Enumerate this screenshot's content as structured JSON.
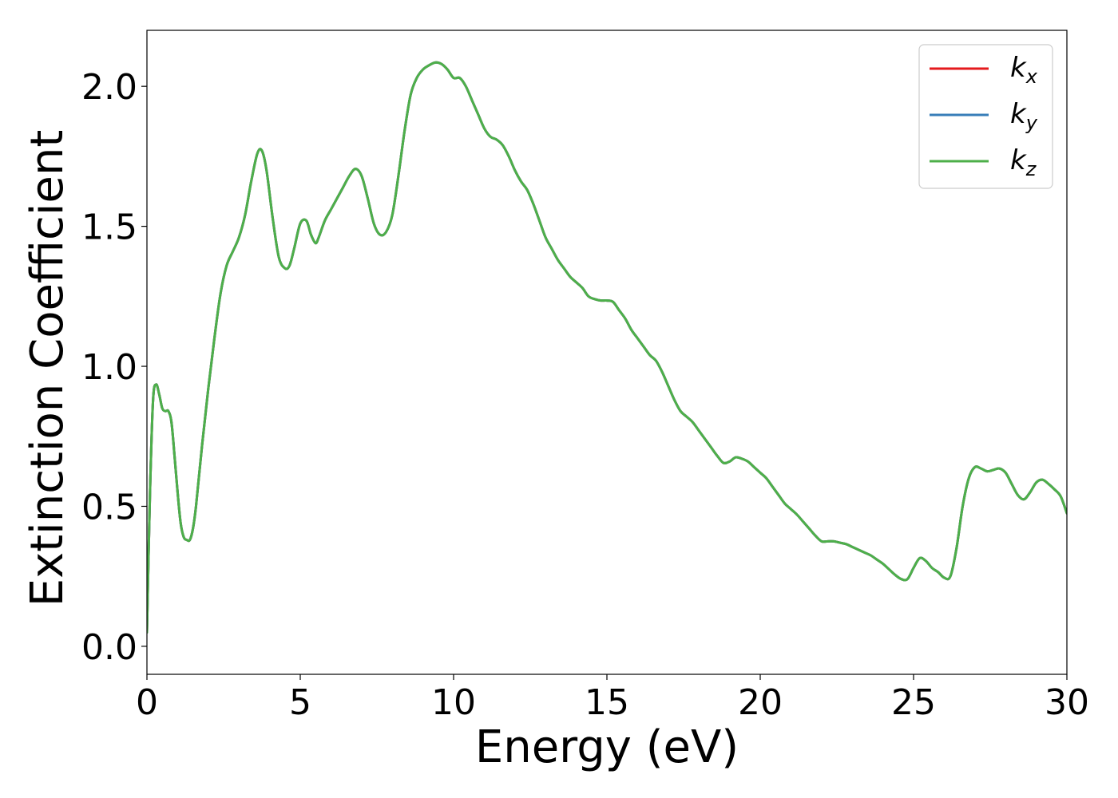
{
  "chart_data": {
    "type": "line",
    "title": "",
    "xlabel": "Energy (eV)",
    "ylabel": "Extinction Coefficient",
    "xlim": [
      0,
      30
    ],
    "ylim": [
      -0.1,
      2.2
    ],
    "xticks": [
      0,
      5,
      10,
      15,
      20,
      25,
      30
    ],
    "xtick_labels": [
      "0",
      "5",
      "10",
      "15",
      "20",
      "25",
      "30"
    ],
    "yticks": [
      0.0,
      0.5,
      1.0,
      1.5,
      2.0
    ],
    "ytick_labels": [
      "0.0",
      "0.5",
      "1.0",
      "1.5",
      "2.0"
    ],
    "grid": false,
    "legend_position": "top-right",
    "x": [
      0,
      0.1,
      0.2,
      0.3,
      0.4,
      0.5,
      0.6,
      0.7,
      0.8,
      0.9,
      1.0,
      1.1,
      1.2,
      1.3,
      1.4,
      1.5,
      1.6,
      1.8,
      2.0,
      2.2,
      2.4,
      2.6,
      2.8,
      3.0,
      3.2,
      3.4,
      3.6,
      3.75,
      3.9,
      4.1,
      4.3,
      4.5,
      4.65,
      4.8,
      5.0,
      5.2,
      5.35,
      5.5,
      5.6,
      5.8,
      6.0,
      6.2,
      6.4,
      6.6,
      6.8,
      7.0,
      7.2,
      7.4,
      7.6,
      7.8,
      8.0,
      8.2,
      8.4,
      8.6,
      8.8,
      9.0,
      9.2,
      9.4,
      9.6,
      9.8,
      10.0,
      10.2,
      10.4,
      10.6,
      10.8,
      11.0,
      11.2,
      11.4,
      11.6,
      11.8,
      12.0,
      12.2,
      12.4,
      12.6,
      12.8,
      13.0,
      13.2,
      13.4,
      13.6,
      13.8,
      14.0,
      14.2,
      14.4,
      14.6,
      14.8,
      15.0,
      15.2,
      15.4,
      15.6,
      15.8,
      16.0,
      16.2,
      16.4,
      16.6,
      16.8,
      17.0,
      17.2,
      17.4,
      17.6,
      17.8,
      18.0,
      18.2,
      18.4,
      18.6,
      18.8,
      19.0,
      19.2,
      19.4,
      19.6,
      19.8,
      20.0,
      20.2,
      20.4,
      20.6,
      20.8,
      21.0,
      21.2,
      21.4,
      21.6,
      21.8,
      22.0,
      22.2,
      22.4,
      22.6,
      22.8,
      23.0,
      23.2,
      23.4,
      23.6,
      23.8,
      24.0,
      24.2,
      24.4,
      24.6,
      24.8,
      25.0,
      25.2,
      25.4,
      25.6,
      25.8,
      26.0,
      26.2,
      26.4,
      26.6,
      26.8,
      27.0,
      27.2,
      27.4,
      27.6,
      27.8,
      28.0,
      28.2,
      28.4,
      28.6,
      28.8,
      29.0,
      29.2,
      29.4,
      29.6,
      29.8,
      30.0
    ],
    "series": [
      {
        "name": "k_x",
        "color": "#e41a1c",
        "y": [
          0.05,
          0.55,
          0.88,
          0.935,
          0.9,
          0.85,
          0.84,
          0.84,
          0.8,
          0.68,
          0.55,
          0.44,
          0.39,
          0.38,
          0.38,
          0.42,
          0.5,
          0.72,
          0.92,
          1.1,
          1.26,
          1.36,
          1.41,
          1.46,
          1.54,
          1.66,
          1.76,
          1.77,
          1.7,
          1.53,
          1.39,
          1.35,
          1.36,
          1.42,
          1.51,
          1.52,
          1.47,
          1.44,
          1.46,
          1.52,
          1.56,
          1.6,
          1.64,
          1.68,
          1.705,
          1.68,
          1.6,
          1.51,
          1.47,
          1.48,
          1.54,
          1.68,
          1.84,
          1.97,
          2.03,
          2.06,
          2.075,
          2.085,
          2.08,
          2.06,
          2.03,
          2.03,
          2.0,
          1.95,
          1.9,
          1.85,
          1.82,
          1.81,
          1.79,
          1.75,
          1.7,
          1.66,
          1.63,
          1.58,
          1.52,
          1.46,
          1.42,
          1.38,
          1.35,
          1.32,
          1.3,
          1.28,
          1.25,
          1.24,
          1.235,
          1.235,
          1.23,
          1.2,
          1.17,
          1.13,
          1.1,
          1.07,
          1.04,
          1.02,
          0.98,
          0.93,
          0.88,
          0.84,
          0.82,
          0.8,
          0.77,
          0.74,
          0.71,
          0.68,
          0.655,
          0.66,
          0.675,
          0.67,
          0.66,
          0.64,
          0.62,
          0.6,
          0.57,
          0.54,
          0.51,
          0.49,
          0.47,
          0.445,
          0.42,
          0.395,
          0.375,
          0.375,
          0.375,
          0.37,
          0.365,
          0.355,
          0.345,
          0.335,
          0.325,
          0.31,
          0.295,
          0.275,
          0.255,
          0.24,
          0.24,
          0.28,
          0.315,
          0.305,
          0.28,
          0.265,
          0.245,
          0.25,
          0.35,
          0.5,
          0.6,
          0.64,
          0.635,
          0.625,
          0.63,
          0.635,
          0.62,
          0.58,
          0.54,
          0.525,
          0.55,
          0.585,
          0.595,
          0.58,
          0.56,
          0.535,
          0.475
        ]
      },
      {
        "name": "k_y",
        "color": "#377eb8",
        "y": [
          0.05,
          0.55,
          0.88,
          0.935,
          0.9,
          0.85,
          0.84,
          0.84,
          0.8,
          0.68,
          0.55,
          0.44,
          0.39,
          0.38,
          0.38,
          0.42,
          0.5,
          0.72,
          0.92,
          1.1,
          1.26,
          1.36,
          1.41,
          1.46,
          1.54,
          1.66,
          1.76,
          1.77,
          1.7,
          1.53,
          1.39,
          1.35,
          1.36,
          1.42,
          1.51,
          1.52,
          1.47,
          1.44,
          1.46,
          1.52,
          1.56,
          1.6,
          1.64,
          1.68,
          1.705,
          1.68,
          1.6,
          1.51,
          1.47,
          1.48,
          1.54,
          1.68,
          1.84,
          1.97,
          2.03,
          2.06,
          2.075,
          2.085,
          2.08,
          2.06,
          2.03,
          2.03,
          2.0,
          1.95,
          1.9,
          1.85,
          1.82,
          1.81,
          1.79,
          1.75,
          1.7,
          1.66,
          1.63,
          1.58,
          1.52,
          1.46,
          1.42,
          1.38,
          1.35,
          1.32,
          1.3,
          1.28,
          1.25,
          1.24,
          1.235,
          1.235,
          1.23,
          1.2,
          1.17,
          1.13,
          1.1,
          1.07,
          1.04,
          1.02,
          0.98,
          0.93,
          0.88,
          0.84,
          0.82,
          0.8,
          0.77,
          0.74,
          0.71,
          0.68,
          0.655,
          0.66,
          0.675,
          0.67,
          0.66,
          0.64,
          0.62,
          0.6,
          0.57,
          0.54,
          0.51,
          0.49,
          0.47,
          0.445,
          0.42,
          0.395,
          0.375,
          0.375,
          0.375,
          0.37,
          0.365,
          0.355,
          0.345,
          0.335,
          0.325,
          0.31,
          0.295,
          0.275,
          0.255,
          0.24,
          0.24,
          0.28,
          0.315,
          0.305,
          0.28,
          0.265,
          0.245,
          0.25,
          0.35,
          0.5,
          0.6,
          0.64,
          0.635,
          0.625,
          0.63,
          0.635,
          0.62,
          0.58,
          0.54,
          0.525,
          0.55,
          0.585,
          0.595,
          0.58,
          0.56,
          0.535,
          0.475
        ]
      },
      {
        "name": "k_z",
        "color": "#4daf4a",
        "y": [
          0.05,
          0.55,
          0.88,
          0.935,
          0.9,
          0.85,
          0.84,
          0.84,
          0.8,
          0.68,
          0.55,
          0.44,
          0.39,
          0.38,
          0.38,
          0.42,
          0.5,
          0.72,
          0.92,
          1.1,
          1.26,
          1.36,
          1.41,
          1.46,
          1.54,
          1.66,
          1.76,
          1.77,
          1.7,
          1.53,
          1.39,
          1.35,
          1.36,
          1.42,
          1.51,
          1.52,
          1.47,
          1.44,
          1.46,
          1.52,
          1.56,
          1.6,
          1.64,
          1.68,
          1.705,
          1.68,
          1.6,
          1.51,
          1.47,
          1.48,
          1.54,
          1.68,
          1.84,
          1.97,
          2.03,
          2.06,
          2.075,
          2.085,
          2.08,
          2.06,
          2.03,
          2.03,
          2.0,
          1.95,
          1.9,
          1.85,
          1.82,
          1.81,
          1.79,
          1.75,
          1.7,
          1.66,
          1.63,
          1.58,
          1.52,
          1.46,
          1.42,
          1.38,
          1.35,
          1.32,
          1.3,
          1.28,
          1.25,
          1.24,
          1.235,
          1.235,
          1.23,
          1.2,
          1.17,
          1.13,
          1.1,
          1.07,
          1.04,
          1.02,
          0.98,
          0.93,
          0.88,
          0.84,
          0.82,
          0.8,
          0.77,
          0.74,
          0.71,
          0.68,
          0.655,
          0.66,
          0.675,
          0.67,
          0.66,
          0.64,
          0.62,
          0.6,
          0.57,
          0.54,
          0.51,
          0.49,
          0.47,
          0.445,
          0.42,
          0.395,
          0.375,
          0.375,
          0.375,
          0.37,
          0.365,
          0.355,
          0.345,
          0.335,
          0.325,
          0.31,
          0.295,
          0.275,
          0.255,
          0.24,
          0.24,
          0.28,
          0.315,
          0.305,
          0.28,
          0.265,
          0.245,
          0.25,
          0.35,
          0.5,
          0.6,
          0.64,
          0.635,
          0.625,
          0.63,
          0.635,
          0.62,
          0.58,
          0.54,
          0.525,
          0.55,
          0.585,
          0.595,
          0.58,
          0.56,
          0.535,
          0.475
        ]
      }
    ],
    "legend": [
      {
        "base": "k",
        "sub": "x",
        "color": "#e41a1c"
      },
      {
        "base": "k",
        "sub": "y",
        "color": "#377eb8"
      },
      {
        "base": "k",
        "sub": "z",
        "color": "#4daf4a"
      }
    ]
  }
}
